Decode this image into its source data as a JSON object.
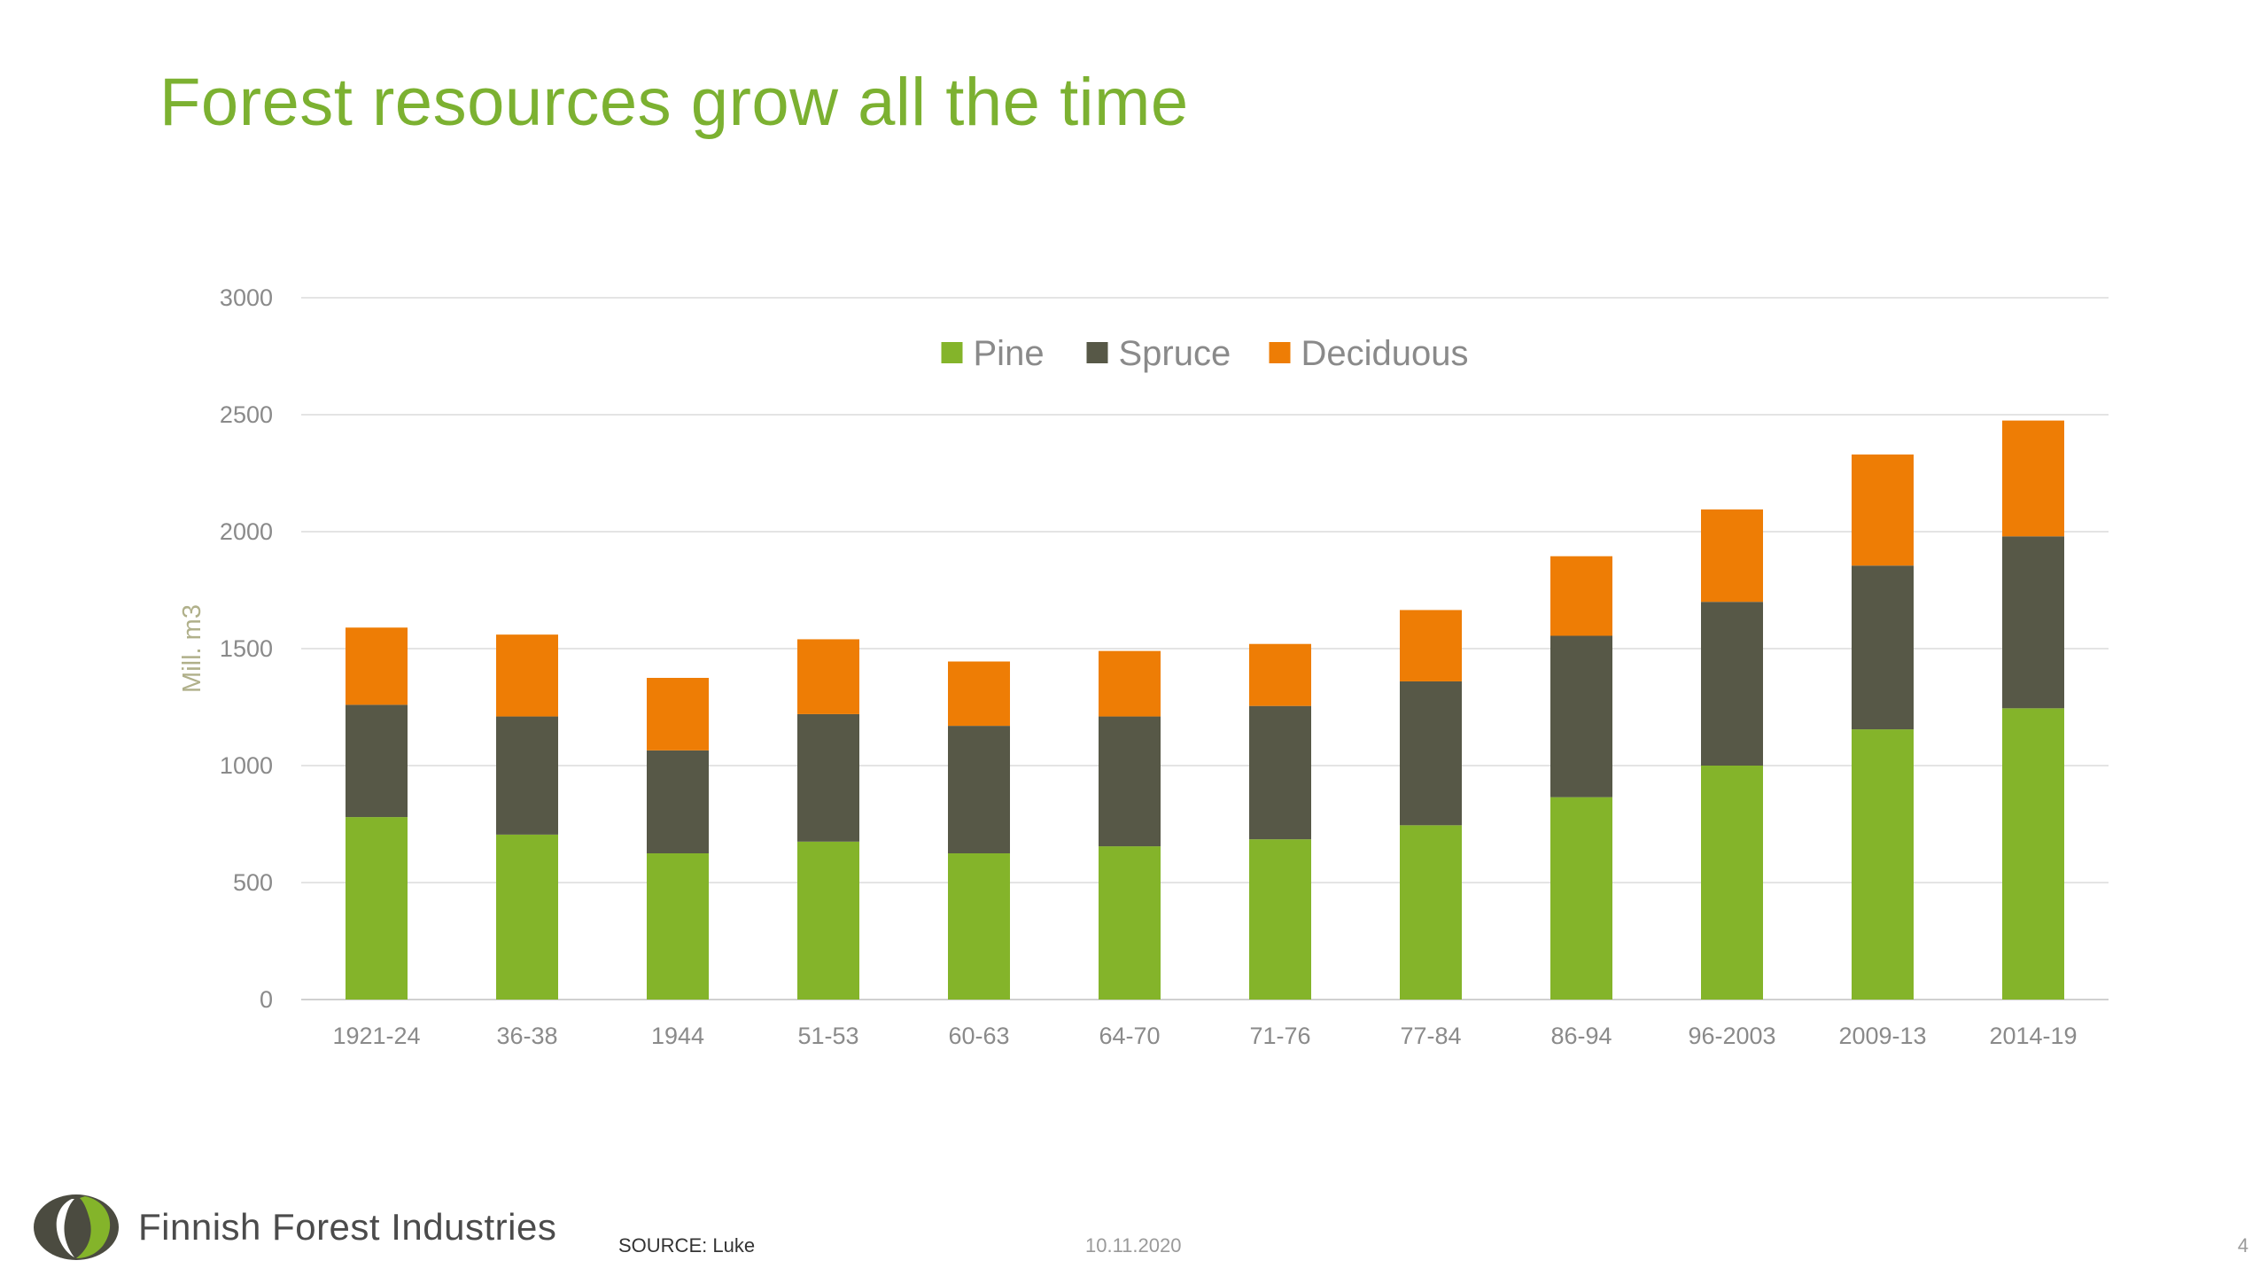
{
  "slide": {
    "title": "Forest resources grow all the time"
  },
  "footer": {
    "brand": "Finnish Forest Industries",
    "source": "SOURCE: Luke",
    "date": "10.11.2020",
    "page_number": "4"
  },
  "colors": {
    "title": "#7cb131",
    "pine": "#84b42a",
    "spruce": "#575847",
    "deciduous": "#ee7d05",
    "grid": "#e4e4e4",
    "axis_text": "#8a8a8a",
    "logo_dark": "#4b4b40",
    "logo_green": "#84b42a"
  },
  "chart_data": {
    "type": "bar",
    "stacked": true,
    "categories": [
      "1921-24",
      "36-38",
      "1944",
      "51-53",
      "60-63",
      "64-70",
      "71-76",
      "77-84",
      "86-94",
      "96-2003",
      "2009-13",
      "2014-19"
    ],
    "series": [
      {
        "name": "Pine",
        "color": "#84b42a",
        "values": [
          780,
          705,
          625,
          675,
          625,
          655,
          685,
          745,
          865,
          1000,
          1155,
          1245
        ]
      },
      {
        "name": "Spruce",
        "color": "#575847",
        "values": [
          480,
          505,
          440,
          545,
          545,
          555,
          570,
          615,
          690,
          700,
          700,
          735
        ]
      },
      {
        "name": "Deciduous",
        "color": "#ee7d05",
        "values": [
          330,
          350,
          310,
          320,
          275,
          280,
          265,
          305,
          340,
          395,
          475,
          495
        ]
      }
    ],
    "title": "",
    "xlabel": "",
    "ylabel": "Mill. m3",
    "ylim": [
      0,
      3000
    ],
    "yticks": [
      0,
      500,
      1000,
      1500,
      2000,
      2500,
      3000
    ],
    "grid": true,
    "legend_position": "top-center"
  }
}
